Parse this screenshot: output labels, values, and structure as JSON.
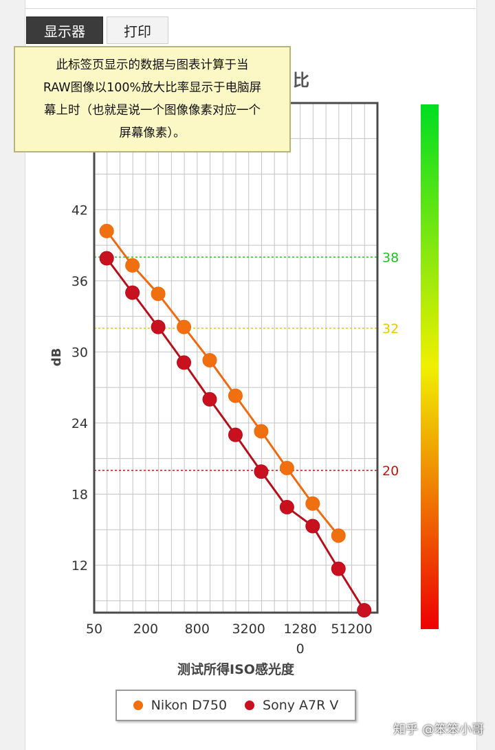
{
  "tabs": [
    {
      "label": "显示器",
      "active": true
    },
    {
      "label": "打印",
      "active": false
    }
  ],
  "tooltip": {
    "lines": [
      "此标签页显示的数据与图表计算于当",
      "RAW图像以100%放大比率显示于电脑屏",
      "幕上时（也就是说一个图像像素对应一个",
      "屏幕像素）。"
    ]
  },
  "chart_data": {
    "type": "line",
    "title": "比",
    "xlabel": "测试所得ISO感光度",
    "ylabel": "dB",
    "xlim": [
      50,
      102400
    ],
    "x_scale": "log2",
    "ylim": [
      8,
      51
    ],
    "yticks": [
      12,
      18,
      24,
      30,
      36,
      42
    ],
    "xtick_labels": [
      {
        "value": 50,
        "lines": [
          "50"
        ]
      },
      {
        "value": 200,
        "lines": [
          "200"
        ]
      },
      {
        "value": 800,
        "lines": [
          "800"
        ]
      },
      {
        "value": 3200,
        "lines": [
          "3200"
        ]
      },
      {
        "value": 12800,
        "lines": [
          "1280",
          "0"
        ]
      },
      {
        "value": 51200,
        "lines": [
          "51200"
        ]
      }
    ],
    "grid": true,
    "thresholds": [
      {
        "value": 38,
        "label": "38",
        "color": "#22c022"
      },
      {
        "value": 32,
        "label": "32",
        "color": "#e8c800"
      },
      {
        "value": 20,
        "label": "20",
        "color": "#cc1111"
      }
    ],
    "series": [
      {
        "name": "Nikon D750",
        "color": "#f07010",
        "line_color": "#ee6a10",
        "x": [
          70,
          140,
          280,
          560,
          1120,
          2240,
          4480,
          8960,
          17920,
          35840
        ],
        "y": [
          40.2,
          37.3,
          34.9,
          32.1,
          29.3,
          26.3,
          23.3,
          20.2,
          17.2,
          14.5
        ]
      },
      {
        "name": "Sony A7R V",
        "color": "#c8101e",
        "line_color": "#b40f1a",
        "x": [
          70,
          140,
          280,
          560,
          1120,
          2240,
          4480,
          8960,
          17920,
          35840,
          71680
        ],
        "y": [
          37.9,
          35.0,
          32.1,
          29.1,
          26.0,
          23.0,
          19.9,
          16.9,
          15.3,
          11.7,
          8.2
        ]
      }
    ],
    "legend_position": "bottom",
    "color_scale": {
      "top": "#00dd22",
      "middle": "#f0f000",
      "bottom": "#ee0000"
    }
  },
  "legend": {
    "items": [
      {
        "label": "Nikon D750",
        "color": "#f07010"
      },
      {
        "label": "Sony A7R V",
        "color": "#c8101e"
      }
    ]
  },
  "watermark": "知乎 @笨笨小哥"
}
